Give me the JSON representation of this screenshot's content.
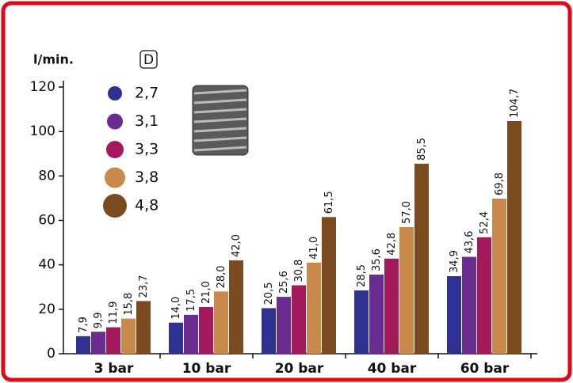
{
  "chart_data": {
    "type": "bar",
    "y_label": "l/min.",
    "legend_title": "D",
    "categories": [
      "3 bar",
      "10 bar",
      "20 bar",
      "40 bar",
      "60 bar"
    ],
    "series": [
      {
        "name": "2,7",
        "color": "#2e3192",
        "values": [
          7.9,
          14.0,
          20.5,
          28.5,
          34.9
        ],
        "value_labels": [
          "7,9",
          "14,0",
          "20,5",
          "28,5",
          "34,9"
        ]
      },
      {
        "name": "3,1",
        "color": "#6a2c91",
        "values": [
          9.9,
          17.5,
          25.6,
          35.6,
          43.6
        ],
        "value_labels": [
          "9,9",
          "17,5",
          "25,6",
          "35,6",
          "43,6"
        ]
      },
      {
        "name": "3,3",
        "color": "#a3195b",
        "values": [
          11.9,
          21.0,
          30.8,
          42.8,
          52.4
        ],
        "value_labels": [
          "11,9",
          "21,0",
          "30,8",
          "42,8",
          "52,4"
        ]
      },
      {
        "name": "3,8",
        "color": "#c8894a",
        "values": [
          15.8,
          28.0,
          41.0,
          57.0,
          69.8
        ],
        "value_labels": [
          "15,8",
          "28,0",
          "41,0",
          "57,0",
          "69,8"
        ]
      },
      {
        "name": "4,8",
        "color": "#7b4a1e",
        "values": [
          23.7,
          42.0,
          61.5,
          85.5,
          104.7
        ],
        "value_labels": [
          "23,7",
          "42,0",
          "61,5",
          "85,5",
          "104,7"
        ]
      }
    ],
    "ylim": [
      0,
      120
    ],
    "yticks": [
      0,
      20,
      40,
      60,
      80,
      100,
      120
    ]
  }
}
